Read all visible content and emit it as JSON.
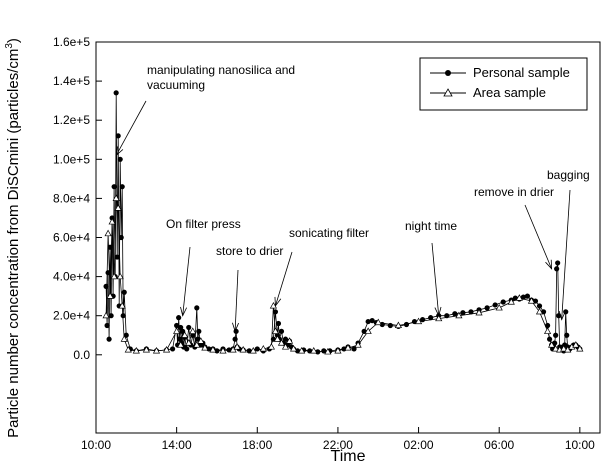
{
  "chart_data": {
    "type": "line",
    "xlabel": "Time",
    "ylabel": "Particle number concentration from DiSCmini (particles/cm",
    "ylabel_sup": "3",
    "ylabel_close": ")",
    "ylim": [
      -40000,
      160000
    ],
    "y_ticks": [
      0,
      20000,
      40000,
      60000,
      80000,
      100000,
      120000,
      140000,
      160000
    ],
    "y_tick_labels": [
      "0.0",
      "2.0e+4",
      "4.0e+4",
      "6.0e+4",
      "8.0e+4",
      "1.0e+5",
      "1.2e+5",
      "1.4e+5",
      "1.6e+5"
    ],
    "xlim_hours": [
      10,
      35
    ],
    "x_ticks_hours": [
      10,
      14,
      18,
      22,
      26,
      30,
      34
    ],
    "x_tick_labels": [
      "10:00",
      "14:00",
      "18:00",
      "22:00",
      "02:00",
      "06:00",
      "10:00"
    ],
    "legend": {
      "position": "top-right",
      "entries": [
        "Personal sample",
        "Area sample"
      ]
    },
    "series": [
      {
        "name": "Personal sample",
        "marker": "filled-circle",
        "x": [
          10.5,
          10.55,
          10.6,
          10.65,
          10.7,
          10.75,
          10.8,
          10.85,
          10.9,
          10.95,
          11.0,
          11.05,
          11.1,
          11.15,
          11.2,
          11.25,
          11.3,
          11.35,
          11.4,
          11.5,
          11.7,
          12.0,
          12.5,
          13.0,
          13.5,
          13.8,
          14.0,
          14.05,
          14.1,
          14.15,
          14.2,
          14.25,
          14.3,
          14.35,
          14.4,
          14.5,
          14.6,
          14.7,
          14.8,
          14.9,
          15.0,
          15.05,
          15.1,
          15.2,
          15.3,
          15.4,
          15.6,
          15.8,
          16.0,
          16.3,
          16.6,
          16.8,
          16.9,
          16.95,
          17.0,
          17.1,
          17.3,
          17.6,
          18.0,
          18.3,
          18.6,
          18.8,
          18.9,
          19.0,
          19.05,
          19.1,
          19.2,
          19.3,
          19.4,
          19.5,
          19.6,
          19.7,
          19.8,
          20.0,
          20.3,
          20.6,
          21.0,
          21.3,
          21.6,
          22.0,
          22.3,
          22.5,
          22.8,
          23.0,
          23.3,
          23.5,
          23.7,
          23.9,
          24.2,
          24.6,
          25.0,
          25.4,
          25.8,
          26.2,
          26.6,
          27.0,
          27.4,
          27.8,
          28.2,
          28.6,
          29.0,
          29.4,
          29.8,
          30.2,
          30.6,
          30.8,
          31.0,
          31.2,
          31.4,
          31.6,
          31.8,
          32.0,
          32.2,
          32.4,
          32.5,
          32.6,
          32.65,
          32.7,
          32.75,
          32.8,
          32.85,
          32.9,
          32.95,
          33.0,
          33.05,
          33.1,
          33.15,
          33.2,
          33.25,
          33.3,
          33.35,
          33.4,
          33.5,
          33.6,
          33.7,
          33.8,
          33.9,
          34.0
        ],
        "y": [
          35000,
          15000,
          42000,
          8000,
          55000,
          20000,
          70000,
          30000,
          86000,
          40000,
          134000,
          50000,
          112000,
          25000,
          100000,
          60000,
          86000,
          20000,
          32000,
          10000,
          3000,
          2000,
          3000,
          2000,
          2500,
          3000,
          15000,
          5000,
          19000,
          8000,
          14000,
          6000,
          12000,
          4000,
          9000,
          3000,
          14000,
          5000,
          10000,
          4000,
          24000,
          8000,
          12000,
          5000,
          6000,
          4000,
          3000,
          3000,
          2000,
          3000,
          2500,
          3000,
          8000,
          12000,
          4000,
          3000,
          2500,
          2000,
          3000,
          2000,
          3000,
          8000,
          22000,
          10000,
          16000,
          8000,
          12000,
          6000,
          8000,
          5000,
          7000,
          4000,
          3000,
          2000,
          2500,
          2000,
          1500,
          2000,
          2000,
          2500,
          3000,
          4000,
          3000,
          6000,
          12000,
          17000,
          17500,
          16500,
          15500,
          15000,
          14500,
          15500,
          17000,
          18000,
          19000,
          20000,
          20000,
          21000,
          21500,
          22000,
          23000,
          24000,
          25500,
          27000,
          28000,
          29000,
          28500,
          29500,
          30000,
          28000,
          27500,
          25000,
          22000,
          15000,
          8000,
          5000,
          3000,
          4000,
          6000,
          10000,
          44000,
          47000,
          20000,
          4000,
          3000,
          3000,
          4000,
          2000,
          5000,
          22000,
          10000,
          4000,
          3000,
          4000,
          5000,
          5000,
          4000,
          3000
        ],
        "color": "#000000"
      },
      {
        "name": "Area sample",
        "marker": "open-triangle",
        "x": [
          10.5,
          10.6,
          10.7,
          10.8,
          10.9,
          11.0,
          11.1,
          11.2,
          11.3,
          11.4,
          11.6,
          12.0,
          12.5,
          13.0,
          13.5,
          14.0,
          14.2,
          14.4,
          14.6,
          14.8,
          15.0,
          15.2,
          15.4,
          15.8,
          16.3,
          16.8,
          17.0,
          17.3,
          17.8,
          18.3,
          18.7,
          18.8,
          18.9,
          19.0,
          19.2,
          19.4,
          19.6,
          19.8,
          20.2,
          20.8,
          21.5,
          22.0,
          22.5,
          23.0,
          23.5,
          24.0,
          25.0,
          26.0,
          27.0,
          28.0,
          29.0,
          30.0,
          30.6,
          31.0,
          31.6,
          32.0,
          32.4,
          32.6,
          32.8,
          33.0,
          33.2,
          33.4,
          33.6,
          33.8,
          34.0
        ],
        "y": [
          20000,
          62000,
          30000,
          68000,
          40000,
          80000,
          75000,
          40000,
          25000,
          8000,
          2500,
          2000,
          2500,
          2000,
          2500,
          12000,
          5000,
          10000,
          6000,
          12000,
          5000,
          7000,
          3500,
          2500,
          2000,
          2500,
          4000,
          2500,
          2000,
          3000,
          4000,
          25000,
          12000,
          8000,
          6000,
          4000,
          7000,
          3000,
          2000,
          2000,
          1500,
          2000,
          3500,
          5000,
          12000,
          16500,
          15000,
          17000,
          18500,
          20000,
          21500,
          24000,
          27000,
          29000,
          27500,
          22000,
          12000,
          5000,
          3000,
          2500,
          3000,
          2500,
          4000,
          5000,
          3000
        ],
        "color": "#000000"
      }
    ],
    "annotations": [
      {
        "text": "manipulating nanosilica and",
        "line2": "vacuuming",
        "x": 11.0,
        "y": 102000
      },
      {
        "text": "On filter press",
        "x": 14.3,
        "y": 20000
      },
      {
        "text": "store to drier",
        "x": 16.9,
        "y": 12000
      },
      {
        "text": "sonicating filter",
        "x": 18.9,
        "y": 25000
      },
      {
        "text": "night time",
        "x": 27.0,
        "y": 20000
      },
      {
        "text": "remove in drier",
        "x": 32.6,
        "y": 44000
      },
      {
        "text": "bagging",
        "x": 33.1,
        "y": 18000
      }
    ]
  }
}
